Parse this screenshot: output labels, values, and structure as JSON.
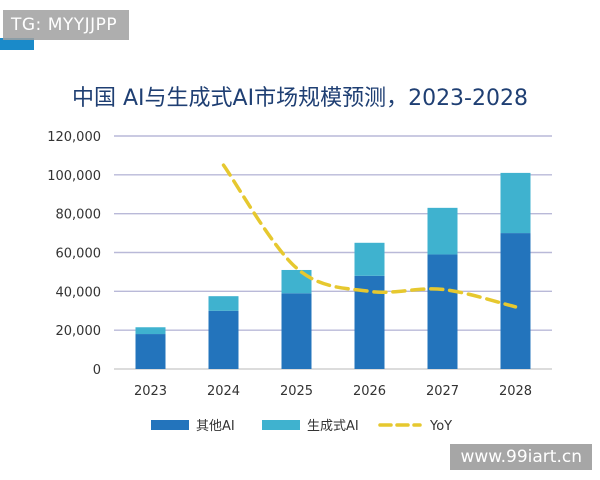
{
  "watermark_top": "TG: MYYJJPP",
  "watermark_bottom": "www.99iart.cn",
  "colors": {
    "other_ai": "#2374bc",
    "gen_ai": "#3fb2cf",
    "yoy": "#e6c82f",
    "grid": "#b9b9d8",
    "title": "#1f3f73"
  },
  "chart_data": {
    "type": "bar",
    "stacked": true,
    "title": "中国 AI与生成式AI市场规模预测，2023-2028",
    "categories": [
      "2023",
      "2024",
      "2025",
      "2026",
      "2027",
      "2028"
    ],
    "ylim": [
      0,
      120000
    ],
    "yticks": [
      0,
      20000,
      40000,
      60000,
      80000,
      100000,
      120000
    ],
    "ytick_labels": [
      "0",
      "20,000",
      "40,000",
      "60,000",
      "80,000",
      "100,000",
      "120,000"
    ],
    "grid": true,
    "legend_position": "bottom",
    "series": [
      {
        "name": "其他AI",
        "type": "bar",
        "values": [
          18000,
          30000,
          39000,
          48000,
          59000,
          70000
        ]
      },
      {
        "name": "生成式AI",
        "type": "bar",
        "values": [
          3500,
          7500,
          12000,
          17000,
          24000,
          31000
        ]
      },
      {
        "name": "YoY",
        "type": "line",
        "style": "dashed",
        "values": [
          null,
          105000,
          52000,
          40000,
          41000,
          32000
        ]
      }
    ]
  }
}
